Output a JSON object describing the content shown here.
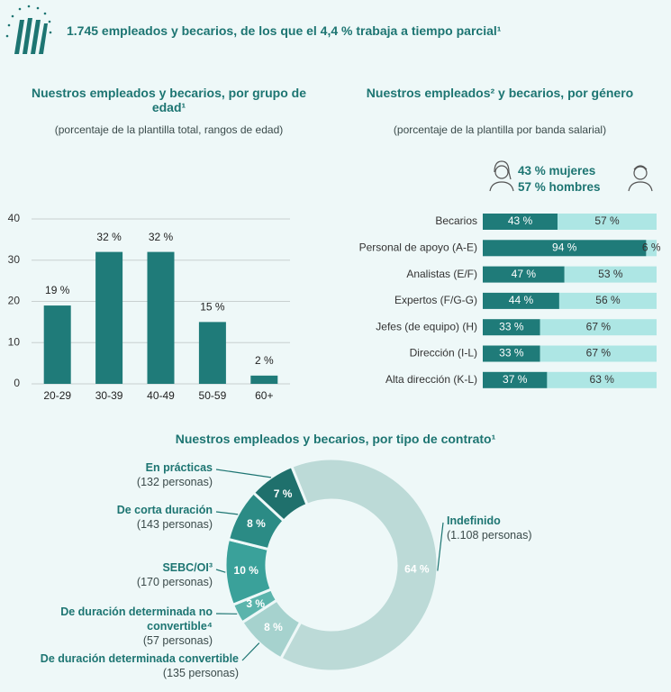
{
  "header": {
    "title": "1.745 empleados y becarios, de los que el 4,4 % trabaja a tiempo parcial¹"
  },
  "chart_data": [
    {
      "type": "bar",
      "title": "Nuestros empleados y becarios, por grupo de edad¹",
      "subtitle": "(porcentaje de la plantilla total, rangos de edad)",
      "categories": [
        "20-29",
        "30-39",
        "40-49",
        "50-59",
        "60+"
      ],
      "values": [
        19,
        32,
        32,
        15,
        2
      ],
      "value_labels": [
        "19 %",
        "32 %",
        "32 %",
        "15 %",
        "2 %"
      ],
      "color": "#1f7b79",
      "ylim": [
        0,
        40
      ],
      "yticks": [
        0,
        10,
        20,
        30,
        40
      ],
      "grid": true
    },
    {
      "type": "stacked_barh",
      "title": "Nuestros empleados² y becarios, por género",
      "subtitle": "(porcentaje de la plantilla por banda salarial)",
      "categories": [
        "Becarios",
        "Personal de apoyo (A-E)",
        "Analistas (E/F)",
        "Expertos (F/G-G)",
        "Jefes (de equipo) (H)",
        "Dirección (I-L)",
        "Alta dirección (K-L)"
      ],
      "series": [
        {
          "name": "43 % mujeres",
          "color": "#1f7b79",
          "values": [
            43,
            94,
            47,
            44,
            33,
            33,
            37
          ],
          "value_labels": [
            "43 %",
            "94 %",
            "47 %",
            "44 %",
            "33 %",
            "33 %",
            "37 %"
          ]
        },
        {
          "name": "57 % hombres",
          "color": "#ade6e4",
          "values": [
            57,
            6,
            53,
            56,
            67,
            67,
            63
          ],
          "value_labels": [
            "57 %",
            "6 %",
            "53 %",
            "56 %",
            "67 %",
            "67 %",
            "63 %"
          ]
        }
      ],
      "xlim": [
        0,
        100
      ]
    },
    {
      "type": "donut",
      "title": "Nuestros empleados y becarios, por tipo de contrato¹",
      "categories": [
        "Indefinido",
        "De duración determinada convertible",
        "De duración determinada no convertible⁴",
        "SEBC/OI³",
        "De corta duración",
        "En prácticas"
      ],
      "details": [
        "(1.108 personas)",
        "(135 personas)",
        "(57 personas)",
        "(170 personas)",
        "(143 personas)",
        "(132 personas)"
      ],
      "values": [
        64,
        8,
        3,
        10,
        8,
        7
      ],
      "value_labels": [
        "64 %",
        "8 %",
        "3 %",
        "10 %",
        "8 %",
        "7 %"
      ],
      "colors": [
        "#bcdad7",
        "#a6d2ce",
        "#5bb4ac",
        "#3aa19a",
        "#2b8b85",
        "#1f706c"
      ]
    }
  ]
}
